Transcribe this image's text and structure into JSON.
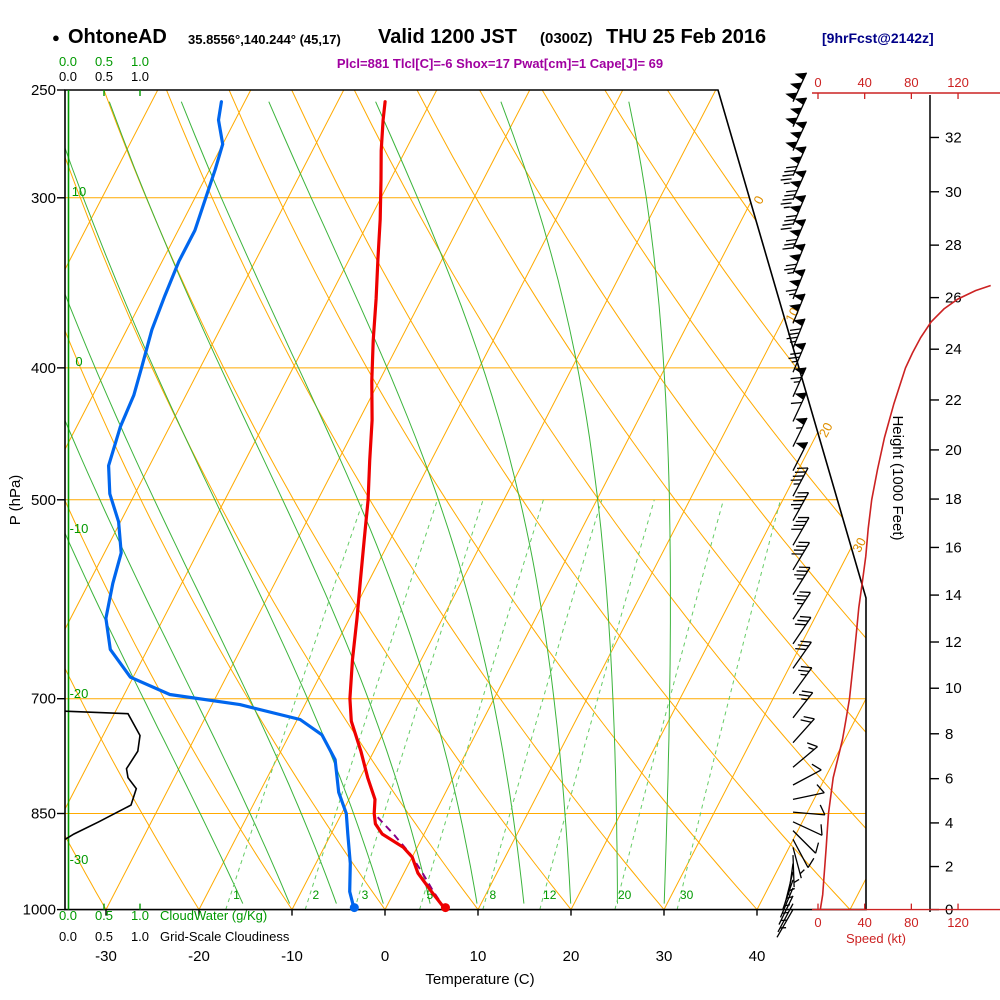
{
  "header": {
    "bullet": "●",
    "station": "OhtoneAD",
    "coords": "35.8556°,140.244° (45,17)",
    "valid": "Valid 1200 JST",
    "valid_z": "(0300Z)",
    "valid_date": "THU 25 Feb 2016",
    "fcst": "[9hrFcst@2142z]",
    "params": "Plcl=881 Tlcl[C]=-6 Shox=17 Pwat[cm]=1 Cape[J]= 69"
  },
  "axes": {
    "pressure_label": "P (hPa)",
    "temperature_label": "Temperature (C)",
    "height_label": "Height (1000 Feet)",
    "speed_label": "Speed (kt)",
    "cloudwater_label": "CloudWater (g/Kg)",
    "cloudiness_label": "Grid-Scale Cloudiness",
    "cloud_scale": [
      "0.0",
      "0.5",
      "1.0"
    ]
  },
  "chart_data": {
    "type": "skewt-log-p",
    "pressure_ticks": [
      250,
      300,
      400,
      500,
      700,
      850,
      1000
    ],
    "temperature_ticks": [
      -30,
      -20,
      -10,
      0,
      10,
      20,
      30,
      40
    ],
    "height_ticks_kft": [
      0,
      2,
      4,
      6,
      8,
      10,
      12,
      14,
      16,
      18,
      20,
      22,
      24,
      26,
      28,
      30,
      32
    ],
    "speed_ticks_kt": [
      0,
      40,
      80,
      120
    ],
    "isotherm_label_values": [
      0,
      10,
      20,
      30
    ],
    "dry_adiabat_label_values": [
      10,
      0,
      -10,
      -20,
      -30
    ],
    "mixing_ratio_lines_gkg": [
      1,
      2,
      3,
      5,
      8,
      12,
      20,
      30
    ],
    "moist_adiabats_thetaw_c": [
      -15,
      -10,
      -5,
      0,
      5,
      10,
      15,
      20,
      25,
      30
    ],
    "dry_adiabats_theta_c": {
      "min": -30,
      "max": 120,
      "step": 10
    },
    "isotherms_c": {
      "min": -80,
      "max": 50,
      "step": 10
    },
    "temperature_profile_p_c": [
      [
        1000,
        6.5
      ],
      [
        970,
        4.0
      ],
      [
        940,
        1.5
      ],
      [
        915,
        0.0
      ],
      [
        900,
        -1.5
      ],
      [
        880,
        -4.5
      ],
      [
        865,
        -5.8
      ],
      [
        850,
        -6.5
      ],
      [
        830,
        -7.2
      ],
      [
        800,
        -9.2
      ],
      [
        765,
        -11.4
      ],
      [
        727,
        -14.1
      ],
      [
        700,
        -15.5
      ],
      [
        655,
        -17.4
      ],
      [
        611,
        -19.2
      ],
      [
        572,
        -21.0
      ],
      [
        535,
        -22.8
      ],
      [
        500,
        -24.6
      ],
      [
        468,
        -26.6
      ],
      [
        437,
        -28.6
      ],
      [
        409,
        -30.8
      ],
      [
        382,
        -32.9
      ],
      [
        356,
        -34.9
      ],
      [
        333,
        -36.9
      ],
      [
        311,
        -38.9
      ],
      [
        291,
        -41.0
      ],
      [
        277,
        -42.6
      ],
      [
        263,
        -44.1
      ],
      [
        255,
        -44.9
      ]
    ],
    "dewpoint_profile_p_c": [
      [
        1000,
        -3.3
      ],
      [
        970,
        -4.8
      ],
      [
        925,
        -6.3
      ],
      [
        880,
        -8.2
      ],
      [
        850,
        -9.5
      ],
      [
        820,
        -11.5
      ],
      [
        776,
        -13.7
      ],
      [
        744,
        -16.5
      ],
      [
        725,
        -19.7
      ],
      [
        707,
        -27.0
      ],
      [
        695,
        -35.1
      ],
      [
        675,
        -40.3
      ],
      [
        644,
        -44.0
      ],
      [
        611,
        -46.2
      ],
      [
        576,
        -47.4
      ],
      [
        547,
        -48.2
      ],
      [
        519,
        -50.2
      ],
      [
        495,
        -52.7
      ],
      [
        472,
        -54.4
      ],
      [
        442,
        -55.3
      ],
      [
        419,
        -55.6
      ],
      [
        400,
        -56.3
      ],
      [
        375,
        -57.3
      ],
      [
        354,
        -57.8
      ],
      [
        334,
        -58.2
      ],
      [
        317,
        -58.2
      ],
      [
        301,
        -58.8
      ],
      [
        286,
        -59.4
      ],
      [
        274,
        -60.0
      ],
      [
        263,
        -61.8
      ],
      [
        255,
        -62.5
      ]
    ],
    "parcel_path_p_c": [
      [
        1000,
        6.5
      ],
      [
        970,
        4.2
      ],
      [
        940,
        2.0
      ],
      [
        910,
        -0.4
      ],
      [
        881,
        -3.2
      ],
      [
        865,
        -4.9
      ],
      [
        850,
        -6.5
      ]
    ],
    "wind_speed_profile_p_kt": [
      [
        1000,
        2
      ],
      [
        975,
        4
      ],
      [
        950,
        5
      ],
      [
        925,
        6
      ],
      [
        900,
        7
      ],
      [
        875,
        8
      ],
      [
        850,
        9
      ],
      [
        825,
        11
      ],
      [
        800,
        13
      ],
      [
        775,
        17
      ],
      [
        750,
        21
      ],
      [
        725,
        24
      ],
      [
        700,
        27
      ],
      [
        675,
        29
      ],
      [
        650,
        31
      ],
      [
        625,
        33
      ],
      [
        600,
        35
      ],
      [
        575,
        38
      ],
      [
        550,
        41
      ],
      [
        525,
        43
      ],
      [
        500,
        46
      ],
      [
        475,
        51
      ],
      [
        450,
        57
      ],
      [
        425,
        65
      ],
      [
        400,
        75
      ],
      [
        390,
        81
      ],
      [
        380,
        88
      ],
      [
        370,
        97
      ],
      [
        362,
        108
      ],
      [
        356,
        120
      ],
      [
        351,
        135
      ],
      [
        348,
        148
      ]
    ],
    "wind_barbs_p_kt_dir": [
      [
        255,
        150,
        25
      ],
      [
        266,
        150,
        25
      ],
      [
        277,
        149,
        25
      ],
      [
        289,
        146,
        24
      ],
      [
        301,
        143,
        24
      ],
      [
        314,
        139,
        23
      ],
      [
        327,
        131,
        23
      ],
      [
        341,
        123,
        22
      ],
      [
        356,
        113,
        22
      ],
      [
        371,
        99,
        22
      ],
      [
        387,
        86,
        22
      ],
      [
        403,
        75,
        23
      ],
      [
        420,
        67,
        24
      ],
      [
        438,
        61,
        25
      ],
      [
        457,
        56,
        26
      ],
      [
        476,
        51,
        27
      ],
      [
        497,
        47,
        28
      ],
      [
        518,
        45,
        29
      ],
      [
        540,
        42,
        30
      ],
      [
        563,
        39,
        31
      ],
      [
        587,
        36,
        32
      ],
      [
        612,
        34,
        33
      ],
      [
        638,
        32,
        34
      ],
      [
        665,
        30,
        35
      ],
      [
        694,
        27,
        36
      ],
      [
        723,
        24,
        38
      ],
      [
        754,
        21,
        42
      ],
      [
        786,
        15,
        50
      ],
      [
        810,
        12,
        62
      ],
      [
        830,
        11,
        78
      ],
      [
        848,
        10,
        95
      ],
      [
        862,
        9,
        115
      ],
      [
        875,
        8,
        135
      ],
      [
        888,
        8,
        152
      ],
      [
        900,
        7,
        165
      ],
      [
        912,
        7,
        178
      ],
      [
        925,
        6,
        188
      ],
      [
        938,
        6,
        194
      ],
      [
        951,
        5,
        199
      ],
      [
        964,
        4,
        203
      ],
      [
        977,
        3,
        206
      ],
      [
        990,
        3,
        208
      ],
      [
        1000,
        2,
        210
      ]
    ],
    "cloud_fraction_profile_p_frac": [
      [
        715,
        0.0
      ],
      [
        718,
        0.84
      ],
      [
        728,
        0.9
      ],
      [
        745,
        1.0
      ],
      [
        765,
        0.97
      ],
      [
        788,
        0.82
      ],
      [
        800,
        0.84
      ],
      [
        815,
        0.95
      ],
      [
        838,
        0.88
      ],
      [
        862,
        0.45
      ],
      [
        880,
        0.12
      ],
      [
        888,
        0.0
      ]
    ],
    "surface_temperature_c": 6.5,
    "surface_dewpoint_c": -3.3,
    "colors": {
      "temperature": "#ee0000",
      "dewpoint": "#0066ee",
      "parcel": "#880088",
      "grid": "#ffaa00",
      "isotherm_label": "#e09000",
      "moist_adiabat": "#3cb43c",
      "mixing_ratio": "#66cc66",
      "green_axis": "#009900",
      "wind_speed_line": "#cc2222",
      "barbs": "#000000",
      "frame": "#000000",
      "params_text": "#a000a0",
      "fcst_text": "#000088"
    }
  }
}
